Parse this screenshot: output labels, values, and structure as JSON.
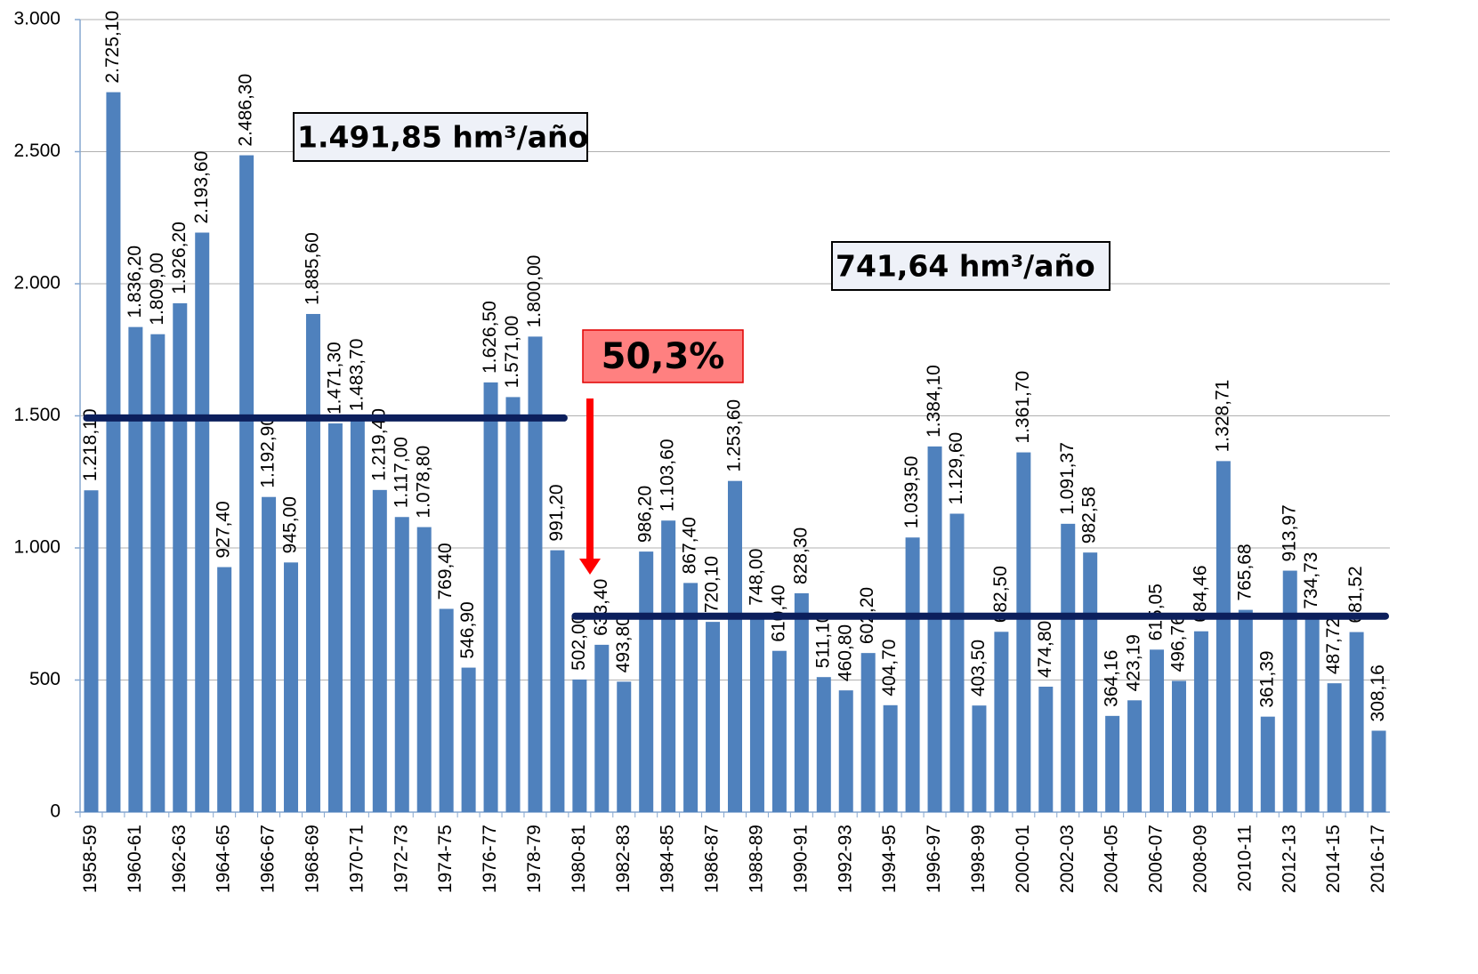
{
  "chart_data": {
    "type": "bar",
    "categories": [
      "1958-59",
      null,
      "1960-61",
      null,
      "1962-63",
      null,
      "1964-65",
      null,
      "1966-67",
      null,
      "1968-69",
      null,
      "1970-71",
      null,
      "1972-73",
      null,
      "1974-75",
      null,
      "1976-77",
      null,
      "1978-79",
      null,
      "1980-81",
      null,
      "1982-83",
      null,
      "1984-85",
      null,
      "1986-87",
      null,
      "1988-89",
      null,
      "1990-91",
      null,
      "1992-93",
      null,
      "1994-95",
      null,
      "1996-97",
      null,
      "1998-99",
      null,
      "2000-01",
      null,
      "2002-03",
      null,
      "2004-05",
      null,
      "2006-07",
      null,
      "2008-09",
      null,
      "2010-11",
      null,
      "2012-13",
      null,
      "2014-15",
      null,
      "2016-17"
    ],
    "values": [
      1218.1,
      2725.1,
      1836.2,
      1809.0,
      1926.2,
      2193.6,
      927.4,
      2486.3,
      1192.9,
      945.0,
      1885.6,
      1471.3,
      1483.7,
      1219.4,
      1117.0,
      1078.8,
      769.4,
      546.9,
      1626.5,
      1571.0,
      1800.0,
      991.2,
      502.0,
      633.4,
      493.8,
      986.2,
      1103.6,
      867.4,
      720.1,
      1253.6,
      748.0,
      610.4,
      828.3,
      511.1,
      460.8,
      602.2,
      404.7,
      1039.5,
      1384.1,
      1129.6,
      403.5,
      682.5,
      1361.7,
      474.8,
      1091.37,
      982.58,
      364.16,
      423.19,
      615.05,
      496.76,
      684.46,
      1328.71,
      765.68,
      361.39,
      913.97,
      734.73,
      487.72,
      681.52,
      308.16
    ],
    "value_labels": [
      "1.218,10",
      "2.725,10",
      "1.836,20",
      "1.809,00",
      "1.926,20",
      "2.193,60",
      "927,40",
      "2.486,30",
      "1.192,90",
      "945,00",
      "1.885,60",
      "1.471,30",
      "1.483,70",
      "1.219,40",
      "1.117,00",
      "1.078,80",
      "769,40",
      "546,90",
      "1.626,50",
      "1.571,00",
      "1.800,00",
      "991,20",
      "502,00",
      "633,40",
      "493,80",
      "986,20",
      "1.103,60",
      "867,40",
      "720,10",
      "1.253,60",
      "748,00",
      "610,40",
      "828,30",
      "511,10",
      "460,80",
      "602,20",
      "404,70",
      "1.039,50",
      "1.384,10",
      "1.129,60",
      "403,50",
      "682,50",
      "1.361,70",
      "474,80",
      "1.091,37",
      "982,58",
      "364,16",
      "423,19",
      "615,05",
      "496,76",
      "684,46",
      "1.328,71",
      "765,68",
      "361,39",
      "913,97",
      "734,73",
      "487,72",
      "681,52",
      "308,16"
    ],
    "color": "#4f81bd",
    "ylim": [
      0,
      3000
    ],
    "yticks": [
      0,
      500,
      {
        "value": 1000,
        "label": "1.000"
      },
      {
        "value": 1500,
        "label": "1.500"
      },
      {
        "value": 2000,
        "label": "2.000"
      },
      {
        "value": 2500,
        "label": "2.500"
      },
      {
        "value": 3000,
        "label": "3.000"
      }
    ],
    "grid": true,
    "mean_lines": [
      {
        "value": 1491.85,
        "label": "1.491,85 hm³/año",
        "color": "#0c1f5c"
      },
      {
        "value": 741.64,
        "label": "741,64 hm³/año",
        "color": "#0c1f5c"
      }
    ],
    "change_label": "50,3%"
  }
}
